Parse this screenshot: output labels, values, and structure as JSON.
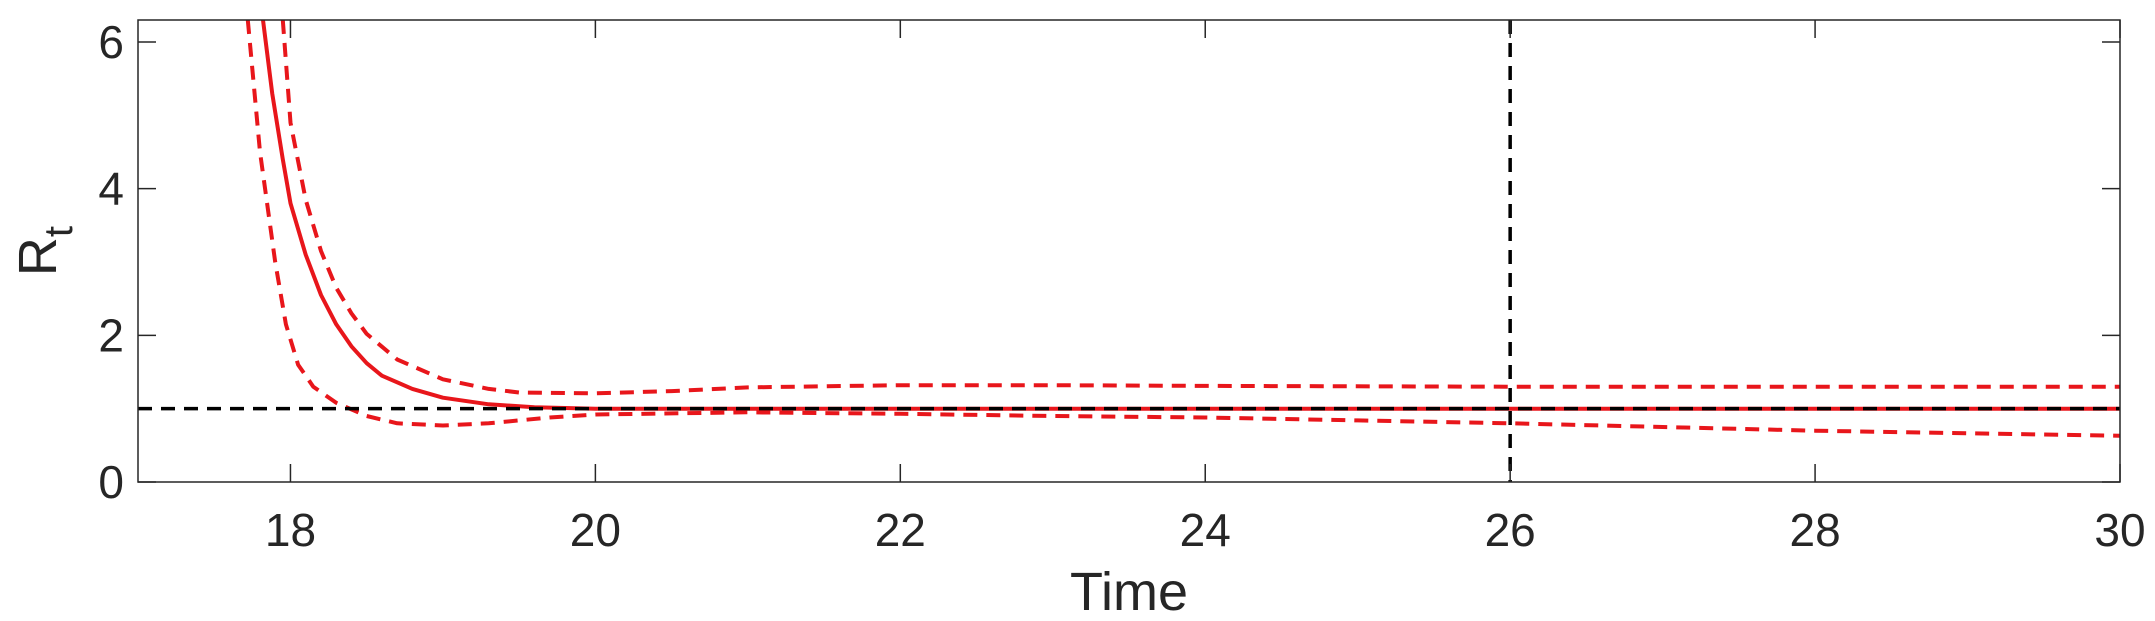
{
  "chart_data": {
    "type": "line",
    "title": "",
    "xlabel": "Time",
    "ylabel": "R",
    "ylabel_subscript": "t",
    "xlim": [
      17,
      30
    ],
    "ylim": [
      0,
      6.3
    ],
    "xticks": [
      18,
      20,
      22,
      24,
      26,
      28,
      30
    ],
    "yticks": [
      0,
      2,
      4,
      6
    ],
    "xtick_labels": [
      "18",
      "20",
      "22",
      "24",
      "26",
      "28",
      "30"
    ],
    "ytick_labels": [
      "0",
      "2",
      "4",
      "6"
    ],
    "grid": false,
    "colors": {
      "series": "#e8161b",
      "reference": "#000000",
      "axes": "#262626"
    },
    "series": [
      {
        "role": "estimate",
        "style": "solid",
        "x": [
          17.82,
          17.88,
          17.95,
          18.0,
          18.1,
          18.2,
          18.3,
          18.4,
          18.5,
          18.6,
          18.8,
          19.0,
          19.3,
          19.6,
          20.0,
          21.0,
          22.0,
          24.0,
          26.0,
          28.0,
          30.0
        ],
        "values": [
          6.3,
          5.3,
          4.4,
          3.8,
          3.1,
          2.55,
          2.15,
          1.85,
          1.62,
          1.45,
          1.27,
          1.15,
          1.06,
          1.02,
          1.0,
          1.0,
          1.0,
          1.0,
          1.0,
          1.0,
          1.0
        ]
      },
      {
        "role": "upper bound",
        "style": "dashed",
        "x": [
          17.95,
          18.0,
          18.1,
          18.2,
          18.3,
          18.4,
          18.5,
          18.7,
          19.0,
          19.3,
          19.5,
          20.0,
          20.5,
          21.0,
          22.0,
          23.0,
          24.0,
          26.0,
          28.0,
          30.0
        ],
        "values": [
          6.3,
          4.9,
          3.85,
          3.15,
          2.65,
          2.3,
          2.02,
          1.67,
          1.4,
          1.27,
          1.22,
          1.21,
          1.24,
          1.29,
          1.32,
          1.32,
          1.31,
          1.3,
          1.3,
          1.3
        ]
      },
      {
        "role": "lower bound",
        "style": "dashed",
        "x": [
          17.72,
          17.8,
          17.9,
          17.97,
          18.05,
          18.15,
          18.3,
          18.5,
          18.7,
          19.0,
          19.3,
          19.7,
          20.0,
          21.0,
          22.0,
          23.0,
          24.0,
          25.0,
          26.0,
          28.0,
          30.0
        ],
        "values": [
          6.3,
          4.5,
          3.0,
          2.15,
          1.6,
          1.3,
          1.08,
          0.9,
          0.8,
          0.77,
          0.8,
          0.88,
          0.92,
          0.95,
          0.93,
          0.9,
          0.88,
          0.84,
          0.8,
          0.7,
          0.63
        ]
      }
    ],
    "reference_lines": [
      {
        "orientation": "horizontal",
        "value": 1,
        "style": "dashed"
      },
      {
        "orientation": "vertical",
        "value": 26,
        "style": "dashed"
      }
    ]
  }
}
